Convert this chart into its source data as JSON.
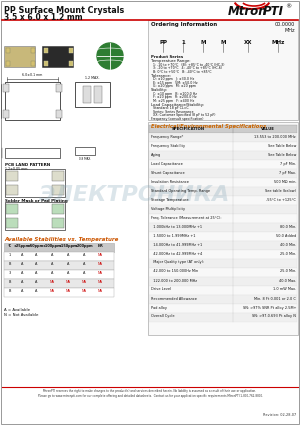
{
  "title_line1": "PP Surface Mount Crystals",
  "title_line2": "3.5 x 6.0 x 1.2 mm",
  "bg_color": "#ffffff",
  "divider_color": "#cc0000",
  "watermark_text": "ЭЛЕКТРОНИКА",
  "watermark_color": "#8aaabb",
  "watermark_alpha": 0.3,
  "footer_line1": "MtronPTI reserves the right to make changes to the product(s) and services described herein. No liability is assumed as a result of their use or application.",
  "footer_line2": "Please go to www.mtronpti.com for our complete offering and detailed datasheets.  Contact us for your application specific requirements MtronPTI 1-800-762-8800.",
  "revision": "Revision: 02-28-07"
}
